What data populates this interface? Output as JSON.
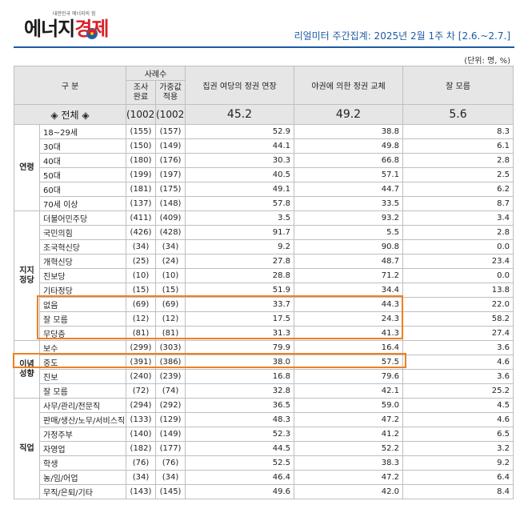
{
  "header": {
    "logo_tagline": "대한민국 에너지의 힘",
    "logo_part1": "에너지",
    "logo_part2": "경제",
    "survey_title": "리얼미터 주간집계: 2025년 2월 1주 차 [2.6.~2.7.]",
    "unit": "(단위: 명, %)"
  },
  "table_head": {
    "division": "구  분",
    "sample": "사례수",
    "surveyed": "조사\n완료",
    "weighted": "가중값\n적용",
    "col1": "집권 여당의 정권 연장",
    "col2": "야권에 의한 정권 교체",
    "col3": "잘 모름"
  },
  "total": {
    "label": "◈ 전체 ◈",
    "surveyed": "(1002)",
    "weighted": "(1002)",
    "v1": "45.2",
    "v2": "49.2",
    "v3": "5.6"
  },
  "groups": [
    {
      "category": "연령",
      "rows": [
        {
          "label": "18~29세",
          "n1": "(155)",
          "n2": "(157)",
          "v1": "52.9",
          "v2": "38.8",
          "v3": "8.3"
        },
        {
          "label": "30대",
          "n1": "(150)",
          "n2": "(149)",
          "v1": "44.1",
          "v2": "49.8",
          "v3": "6.1"
        },
        {
          "label": "40대",
          "n1": "(180)",
          "n2": "(176)",
          "v1": "30.3",
          "v2": "66.8",
          "v3": "2.8"
        },
        {
          "label": "50대",
          "n1": "(199)",
          "n2": "(197)",
          "v1": "40.5",
          "v2": "57.1",
          "v3": "2.5"
        },
        {
          "label": "60대",
          "n1": "(181)",
          "n2": "(175)",
          "v1": "49.1",
          "v2": "44.7",
          "v3": "6.2"
        },
        {
          "label": "70세 이상",
          "n1": "(137)",
          "n2": "(148)",
          "v1": "57.8",
          "v2": "33.5",
          "v3": "8.7"
        }
      ]
    },
    {
      "category": "지지\n정당",
      "rows": [
        {
          "label": "더불어민주당",
          "n1": "(411)",
          "n2": "(409)",
          "v1": "3.5",
          "v2": "93.2",
          "v3": "3.4"
        },
        {
          "label": "국민의힘",
          "n1": "(426)",
          "n2": "(428)",
          "v1": "91.7",
          "v2": "5.5",
          "v3": "2.8"
        },
        {
          "label": "조국혁신당",
          "n1": "(34)",
          "n2": "(34)",
          "v1": "9.2",
          "v2": "90.8",
          "v3": "0.0"
        },
        {
          "label": "개혁신당",
          "n1": "(25)",
          "n2": "(24)",
          "v1": "27.8",
          "v2": "48.7",
          "v3": "23.4"
        },
        {
          "label": "진보당",
          "n1": "(10)",
          "n2": "(10)",
          "v1": "28.8",
          "v2": "71.2",
          "v3": "0.0"
        },
        {
          "label": "기타정당",
          "n1": "(15)",
          "n2": "(15)",
          "v1": "51.9",
          "v2": "34.4",
          "v3": "13.8"
        },
        {
          "label": "없음",
          "n1": "(69)",
          "n2": "(69)",
          "v1": "33.7",
          "v2": "44.3",
          "v3": "22.0"
        },
        {
          "label": "잘 모름",
          "n1": "(12)",
          "n2": "(12)",
          "v1": "17.5",
          "v2": "24.3",
          "v3": "58.2"
        },
        {
          "label": "무당층",
          "n1": "(81)",
          "n2": "(81)",
          "v1": "31.3",
          "v2": "41.3",
          "v3": "27.4"
        }
      ]
    },
    {
      "category": "이념\n성향",
      "rows": [
        {
          "label": "보수",
          "n1": "(299)",
          "n2": "(303)",
          "v1": "79.9",
          "v2": "16.4",
          "v3": "3.6"
        },
        {
          "label": "중도",
          "n1": "(391)",
          "n2": "(386)",
          "v1": "38.0",
          "v2": "57.5",
          "v3": "4.6"
        },
        {
          "label": "진보",
          "n1": "(240)",
          "n2": "(239)",
          "v1": "16.8",
          "v2": "79.6",
          "v3": "3.6"
        },
        {
          "label": "잘 모름",
          "n1": "(72)",
          "n2": "(74)",
          "v1": "32.8",
          "v2": "42.1",
          "v3": "25.2"
        }
      ]
    },
    {
      "category": "직업",
      "rows": [
        {
          "label": "사무/관리/전문직",
          "n1": "(294)",
          "n2": "(292)",
          "v1": "36.5",
          "v2": "59.0",
          "v3": "4.5"
        },
        {
          "label": "판매/생산/노무/서비스직",
          "n1": "(133)",
          "n2": "(129)",
          "v1": "48.3",
          "v2": "47.2",
          "v3": "4.6"
        },
        {
          "label": "가정주부",
          "n1": "(140)",
          "n2": "(149)",
          "v1": "52.3",
          "v2": "41.2",
          "v3": "6.5"
        },
        {
          "label": "자영업",
          "n1": "(182)",
          "n2": "(177)",
          "v1": "44.5",
          "v2": "52.2",
          "v3": "3.2"
        },
        {
          "label": "학생",
          "n1": "(76)",
          "n2": "(76)",
          "v1": "52.5",
          "v2": "38.3",
          "v3": "9.2"
        },
        {
          "label": "농/임/어업",
          "n1": "(34)",
          "n2": "(34)",
          "v1": "46.4",
          "v2": "47.2",
          "v3": "6.4"
        },
        {
          "label": "무직/은퇴/기타",
          "n1": "(143)",
          "n2": "(145)",
          "v1": "49.6",
          "v2": "42.0",
          "v3": "8.4"
        }
      ]
    }
  ],
  "colors": {
    "title_blue": "#1e5aa5",
    "logo_red": "#d92027",
    "highlight_orange": "#f07f1e",
    "header_gray": "#e6e6e6"
  }
}
